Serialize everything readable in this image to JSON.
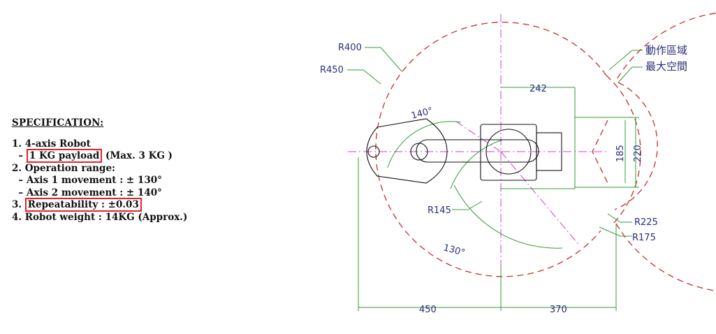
{
  "spec": {
    "title": "SPECIFICATION:",
    "line1": "1. 4-axis Robot",
    "line2_prefix": "  –",
    "line2_box": "1 KG payload",
    "line2_suffix": " (Max. 3 KG )",
    "line3": "2. Operation range:",
    "line4": "  – Axis 1 movement : ± 130°",
    "line5": "  – Axis 2 movement : ± 140°",
    "line6_prefix": "3. ",
    "line6_box": "Repeatability : ±0.03",
    "line7": "4. Robot weight : 14KG (Approx.)"
  },
  "drawing": {
    "r400": "R400",
    "r450": "R450",
    "angle140": "140°",
    "dim242": "242",
    "dim185": "185",
    "dim220": "220",
    "r145": "R145",
    "angle130": "130°",
    "r225": "R225",
    "r175": "R175",
    "dim450": "450",
    "dim370": "370",
    "cn1": "動作區域",
    "cn2": "最大空間"
  },
  "colors": {
    "red_highlight": "#e8202a",
    "dashed_red": "#cc2b2b",
    "dimension_green": "#2f9e3a",
    "centerline_magenta": "#d43bd4",
    "text_blue": "#2a2e7a"
  }
}
